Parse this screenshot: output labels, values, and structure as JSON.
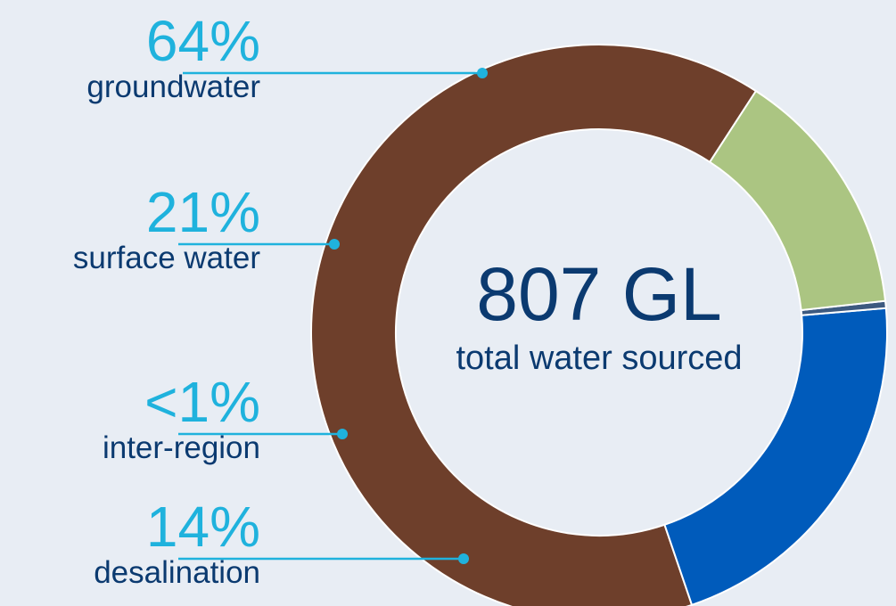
{
  "chart_data": {
    "type": "pie",
    "categories": [
      "groundwater",
      "surface water",
      "inter-region",
      "desalination"
    ],
    "values": [
      64,
      21,
      0.4,
      14
    ],
    "value_labels": [
      "64%",
      "21%",
      "<1%",
      "14%"
    ],
    "colors": [
      "#6e3f2b",
      "#005bbb",
      "#3d5a80",
      "#abc582"
    ],
    "center_value": "807 GL",
    "center_caption": "total water sourced"
  },
  "style": {
    "background": "#e8edf4",
    "percent_color": "#1fb2dd",
    "label_color": "#0b3a70",
    "leader_color": "#1fb2dd",
    "separator_color": "#ffffff"
  }
}
